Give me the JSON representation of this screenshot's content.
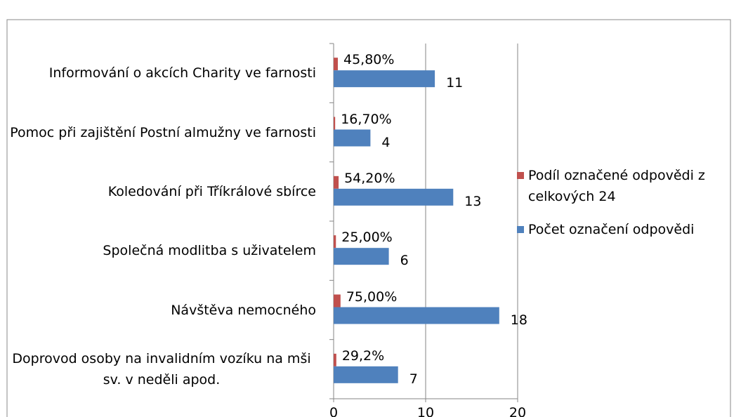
{
  "chart_data": {
    "type": "bar",
    "orientation": "horizontal",
    "categories": [
      "Informování o akcích Charity ve farnosti",
      "Pomoc při zajištění Postní almužny ve farnosti",
      "Koledování při Tříkrálové sbírce",
      "Společná modlitba s uživatelem",
      "Návštěva nemocného",
      "Doprovod osoby na invalidním vozíku na mši sv. v neděli apod."
    ],
    "series": [
      {
        "name": "Podíl označené odpovědi z celkových 24",
        "color": "#c0504d",
        "values": [
          0.458,
          0.167,
          0.542,
          0.25,
          0.75,
          0.292
        ],
        "value_labels": [
          "45,80%",
          "16,70%",
          "54,20%",
          "25,00%",
          "75,00%",
          "29,2%"
        ]
      },
      {
        "name": "Počet označení odpovědi",
        "color": "#4f81bd",
        "values": [
          11,
          4,
          13,
          6,
          18,
          7
        ]
      }
    ],
    "xlim": [
      0,
      20
    ],
    "xticks": [
      0,
      10,
      20
    ],
    "grid": true,
    "legend": "right"
  }
}
